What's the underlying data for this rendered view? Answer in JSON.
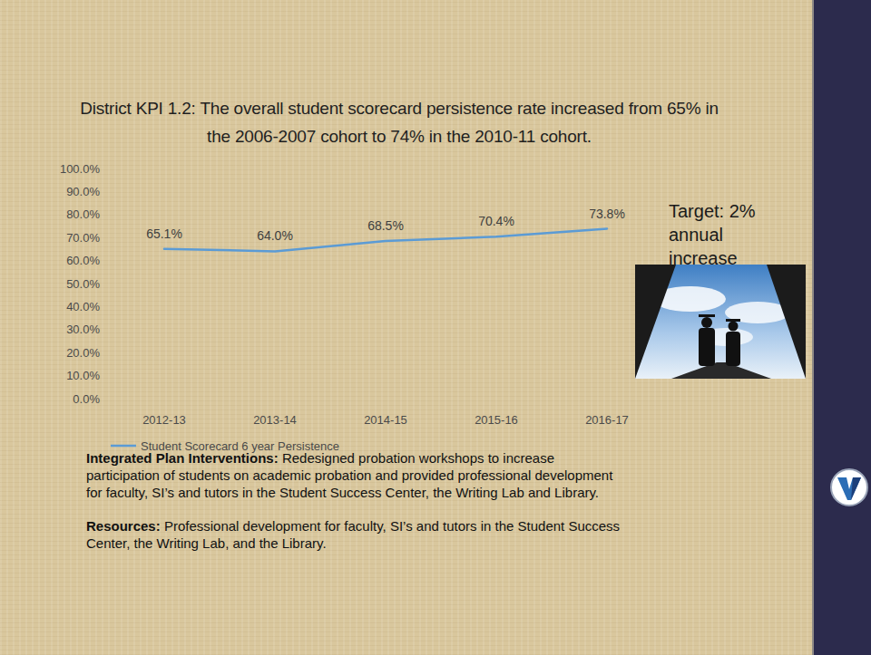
{
  "chart_data": {
    "type": "line",
    "title": "District KPI 1.2: The overall student scorecard persistence rate increased from 65% in the 2006-2007 cohort to 74% in the 2010-11 cohort.",
    "categories": [
      "2012-13",
      "2013-14",
      "2014-15",
      "2015-16",
      "2016-17"
    ],
    "series": [
      {
        "name": "Student Scorecard 6 year Persistence",
        "color": "#5b9bd5",
        "values": [
          65.1,
          64.0,
          68.5,
          70.4,
          73.8
        ],
        "value_labels": [
          "65.1%",
          "64.0%",
          "68.5%",
          "70.4%",
          "73.8%"
        ]
      }
    ],
    "ylim": [
      0,
      100
    ],
    "yticks": [
      {
        "value": 0,
        "label": "0.0%"
      },
      {
        "value": 10,
        "label": "10.0%"
      },
      {
        "value": 20,
        "label": "20.0%"
      },
      {
        "value": 30,
        "label": "30.0%"
      },
      {
        "value": 40,
        "label": "40.0%"
      },
      {
        "value": 50,
        "label": "50.0%"
      },
      {
        "value": 60,
        "label": "60.0%"
      },
      {
        "value": 70,
        "label": "70.0%"
      },
      {
        "value": 80,
        "label": "80.0%"
      },
      {
        "value": 90,
        "label": "90.0%"
      },
      {
        "value": 100,
        "label": "100.0%"
      }
    ],
    "grid": false,
    "data_labels": true,
    "legend": "bottom",
    "annotations": [
      "Target: 2% annual increase"
    ]
  },
  "notes": [
    {
      "heading": "Integrated Plan Interventions:",
      "text": "Redesigned probation workshops to increase participation of students on academic probation and provided professional development for faculty, SI’s and tutors in the Student Success Center, the Writing Lab and Library."
    },
    {
      "heading": "Resources:",
      "text": "Professional development for faculty, SI’s and tutors in the Student Success Center, the Writing Lab, and the Library."
    }
  ]
}
